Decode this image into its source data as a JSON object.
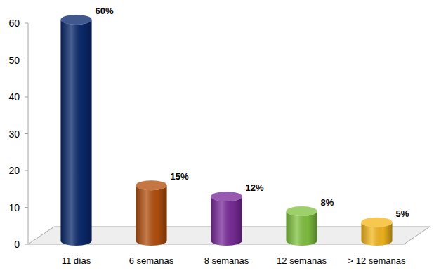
{
  "chart_data": {
    "type": "bar",
    "categories": [
      "11 días",
      "6 semanas",
      "8 semanas",
      "12 semanas",
      "> 12 semanas"
    ],
    "values": [
      60,
      15,
      12,
      8,
      5
    ],
    "value_labels": [
      "60%",
      "15%",
      "12%",
      "8%",
      "5%"
    ],
    "colors": [
      "#0b2a6e",
      "#b4500f",
      "#7b2c9c",
      "#82c341",
      "#f6b81e"
    ],
    "ylim": [
      0,
      60
    ],
    "yticks": [
      0,
      10,
      20,
      30,
      40,
      50,
      60
    ],
    "grid": false,
    "data_labels": true
  }
}
